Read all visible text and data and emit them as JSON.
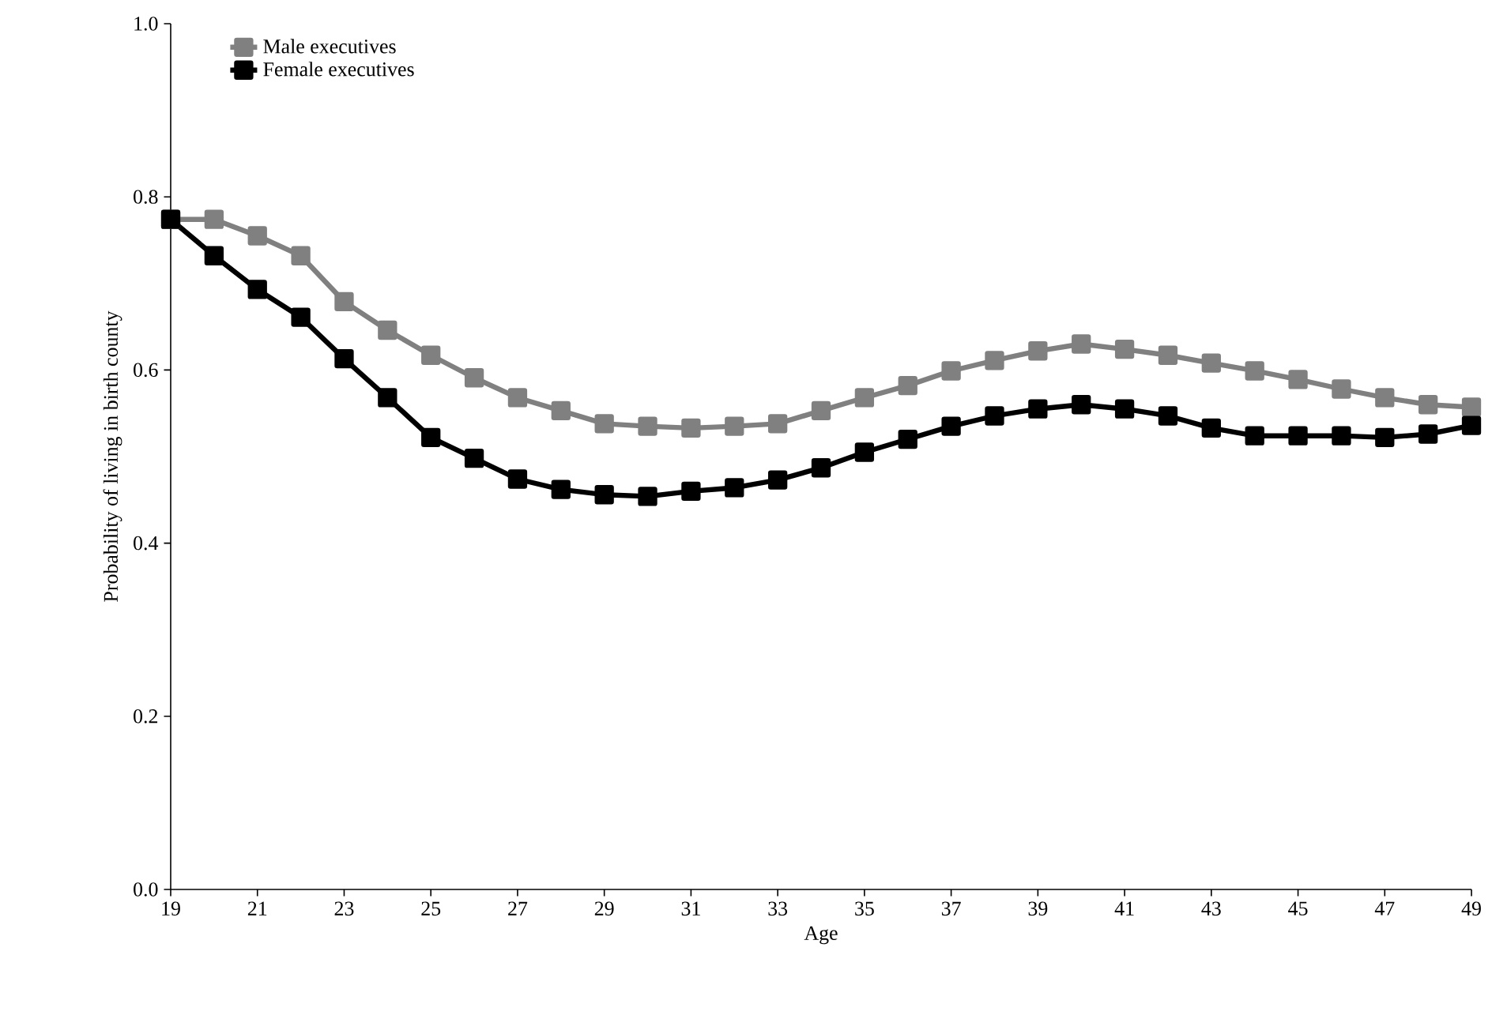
{
  "chart_data": {
    "type": "line",
    "xlabel": "Age",
    "ylabel": "Probability of living in birth county",
    "x": [
      19,
      20,
      21,
      22,
      23,
      24,
      25,
      26,
      27,
      28,
      29,
      30,
      31,
      32,
      33,
      34,
      35,
      36,
      37,
      38,
      39,
      40,
      41,
      42,
      43,
      44,
      45,
      46,
      47,
      48,
      49
    ],
    "series": [
      {
        "name": "Male executives",
        "color": "#808080",
        "values": [
          0.774,
          0.774,
          0.755,
          0.732,
          0.679,
          0.646,
          0.617,
          0.591,
          0.568,
          0.553,
          0.538,
          0.535,
          0.533,
          0.535,
          0.538,
          0.553,
          0.568,
          0.582,
          0.599,
          0.611,
          0.622,
          0.63,
          0.624,
          0.617,
          0.608,
          0.599,
          0.589,
          0.578,
          0.568,
          0.56,
          0.557
        ]
      },
      {
        "name": "Female executives",
        "color": "#000000",
        "values": [
          0.774,
          0.732,
          0.693,
          0.661,
          0.613,
          0.568,
          0.522,
          0.498,
          0.474,
          0.462,
          0.456,
          0.454,
          0.46,
          0.464,
          0.473,
          0.487,
          0.505,
          0.52,
          0.535,
          0.547,
          0.555,
          0.56,
          0.555,
          0.547,
          0.533,
          0.524,
          0.524,
          0.524,
          0.522,
          0.526,
          0.536
        ]
      }
    ],
    "xlim": [
      19,
      49
    ],
    "xticks": [
      19,
      21,
      23,
      25,
      27,
      29,
      31,
      33,
      35,
      37,
      39,
      41,
      43,
      45,
      47,
      49
    ],
    "ylim": [
      0,
      1
    ],
    "yticks": [
      {
        "value": 0,
        "label": "0.0"
      },
      {
        "value": 0.2,
        "label": "0.2"
      },
      {
        "value": 0.4,
        "label": "0.4"
      },
      {
        "value": 0.6,
        "label": "0.6"
      },
      {
        "value": 0.8,
        "label": "0.8"
      },
      {
        "value": 1,
        "label": "1.0"
      }
    ],
    "marker": "square",
    "line_style": "solid",
    "grid": false,
    "legend": "top left"
  }
}
